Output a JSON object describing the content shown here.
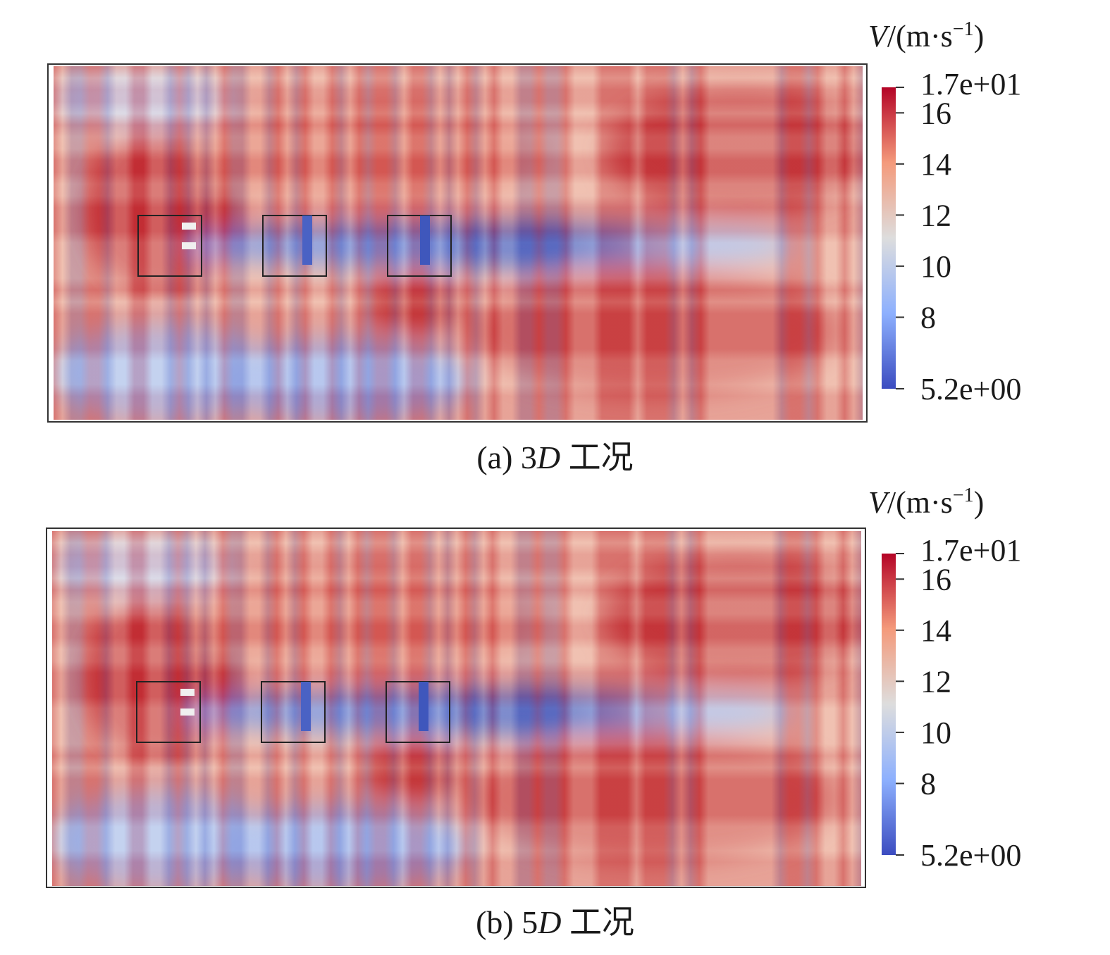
{
  "chart_data": [
    {
      "type": "heatmap",
      "panel_letter": "(a) ",
      "case_number": "3",
      "case_letter": "D",
      "case_suffix": " 工况",
      "colorbar": {
        "quantity": "V",
        "unit": "/(m·s",
        "unit_exponent": "−1",
        "unit_close": ")",
        "min": 5.2,
        "max": 17,
        "min_label": "5.2e+00",
        "max_label": "1.7e+01",
        "ticks": [
          8,
          10,
          12,
          14,
          16
        ],
        "tick_labels": [
          "8",
          "10",
          "12",
          "14",
          "16"
        ],
        "colors": [
          "#3b4cc0",
          "#8db0fe",
          "#dddddd",
          "#f49a7b",
          "#b40426"
        ]
      },
      "boxes": 3
    },
    {
      "type": "heatmap",
      "panel_letter": "(b) ",
      "case_number": "5",
      "case_letter": "D",
      "case_suffix": " 工况",
      "colorbar": {
        "quantity": "V",
        "unit": "/(m·s",
        "unit_exponent": "−1",
        "unit_close": ")",
        "min": 5.2,
        "max": 17,
        "min_label": "5.2e+00",
        "max_label": "1.7e+01",
        "ticks": [
          8,
          10,
          12,
          14,
          16
        ],
        "tick_labels": [
          "8",
          "10",
          "12",
          "14",
          "16"
        ],
        "colors": [
          "#3b4cc0",
          "#8db0fe",
          "#dddddd",
          "#f49a7b",
          "#b40426"
        ]
      },
      "boxes": 3
    }
  ]
}
